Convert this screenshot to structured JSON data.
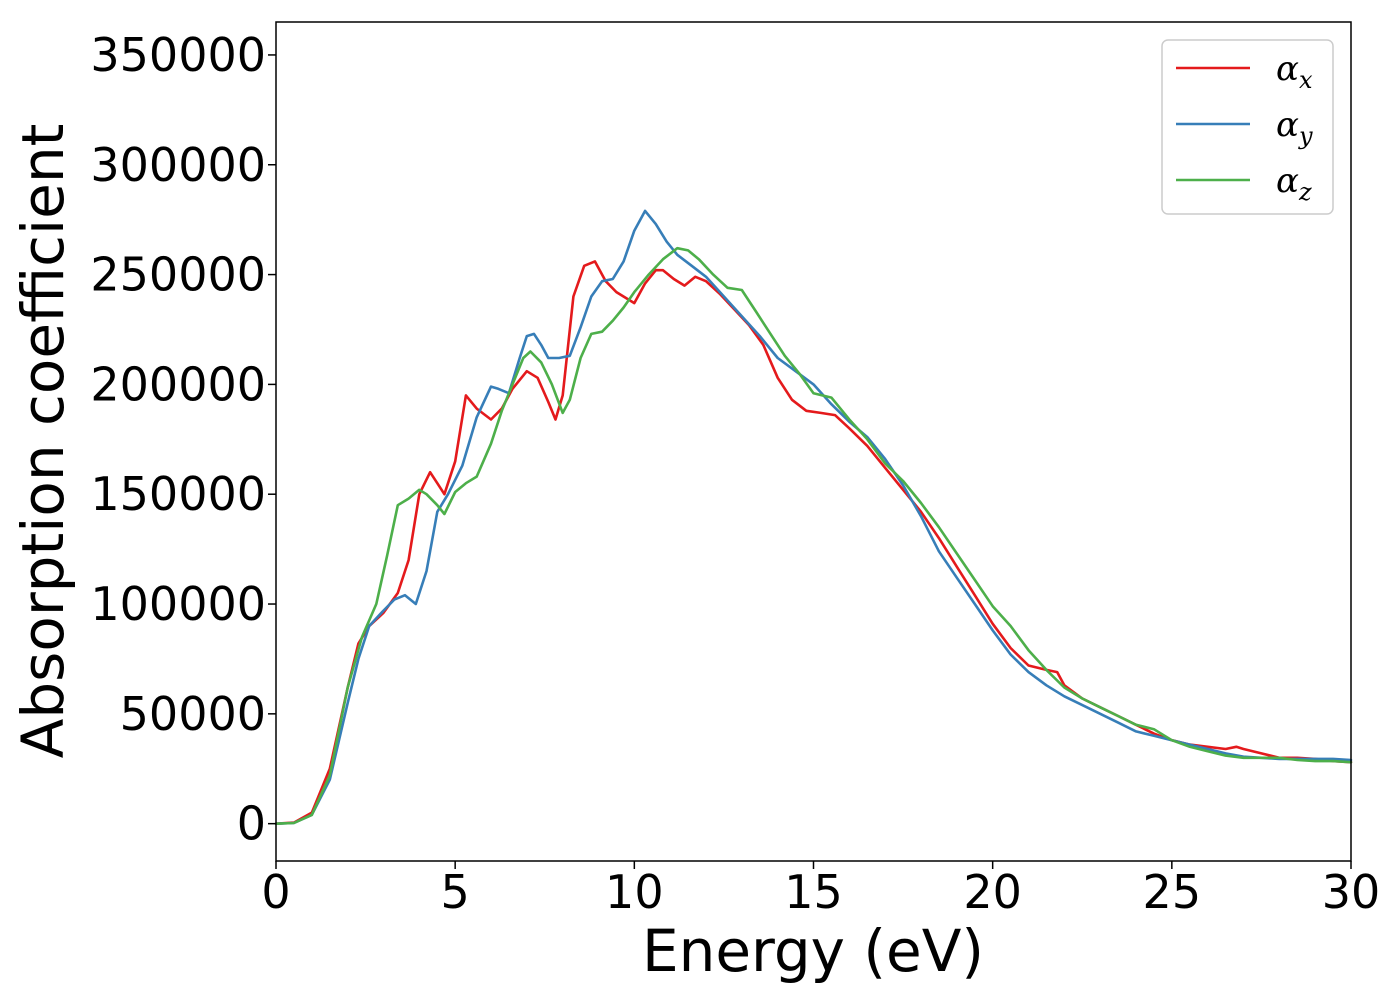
{
  "chart_data": {
    "type": "line",
    "title": "",
    "xlabel": "Energy (eV)",
    "ylabel": "Absorption coefficient",
    "xlim": [
      0,
      30
    ],
    "ylim": [
      -17000,
      365000
    ],
    "xticks": [
      0,
      5,
      10,
      15,
      20,
      25,
      30
    ],
    "xtick_labels": [
      "0",
      "5",
      "10",
      "15",
      "20",
      "25",
      "30"
    ],
    "yticks": [
      0,
      50000,
      100000,
      150000,
      200000,
      250000,
      300000,
      350000
    ],
    "ytick_labels": [
      "0",
      "50000",
      "100000",
      "150000",
      "200000",
      "250000",
      "300000",
      "350000"
    ],
    "grid": false,
    "legend_position": "top-right",
    "series": [
      {
        "name": "α",
        "subscript": "x",
        "color": "#e41a1c",
        "x": [
          0,
          0.5,
          1.0,
          1.5,
          2.0,
          2.3,
          2.6,
          3.0,
          3.4,
          3.7,
          4.0,
          4.3,
          4.5,
          4.7,
          5.0,
          5.3,
          5.6,
          6.0,
          6.3,
          6.6,
          7.0,
          7.3,
          7.6,
          7.8,
          8.0,
          8.3,
          8.6,
          8.9,
          9.2,
          9.5,
          10.0,
          10.3,
          10.6,
          10.8,
          11.1,
          11.4,
          11.7,
          12.0,
          12.4,
          12.8,
          13.2,
          13.6,
          14.0,
          14.4,
          14.8,
          15.2,
          15.6,
          16.0,
          16.5,
          17.0,
          17.5,
          18.0,
          18.5,
          19.0,
          19.5,
          20.0,
          20.5,
          21.0,
          21.5,
          21.8,
          22.0,
          22.5,
          23.0,
          23.5,
          24.0,
          24.5,
          25.0,
          25.5,
          26.0,
          26.5,
          26.8,
          27.0,
          27.5,
          28.0,
          28.5,
          29.0,
          29.5,
          30.0
        ],
        "values": [
          0,
          500,
          5000,
          25000,
          62000,
          82000,
          90000,
          96000,
          105000,
          120000,
          150000,
          160000,
          155000,
          150000,
          165000,
          195000,
          189000,
          184000,
          189000,
          198000,
          206000,
          203000,
          192000,
          184000,
          195000,
          240000,
          254000,
          256000,
          247000,
          242000,
          237000,
          246000,
          252000,
          252000,
          248000,
          245000,
          249000,
          247000,
          241000,
          234000,
          227000,
          218000,
          203000,
          193000,
          188000,
          187000,
          186000,
          180000,
          172000,
          162000,
          152000,
          142000,
          130000,
          117000,
          104000,
          91000,
          80000,
          72000,
          70000,
          69000,
          63000,
          57000,
          53000,
          49000,
          45000,
          41000,
          38000,
          36000,
          35000,
          34000,
          35000,
          34000,
          32000,
          30000,
          30000,
          29500,
          28500,
          28000
        ]
      },
      {
        "name": "α",
        "subscript": "y",
        "color": "#377eb8",
        "x": [
          0,
          0.5,
          1.0,
          1.5,
          2.0,
          2.3,
          2.6,
          3.0,
          3.3,
          3.6,
          3.9,
          4.2,
          4.5,
          4.8,
          5.2,
          5.6,
          6.0,
          6.2,
          6.5,
          6.8,
          7.0,
          7.2,
          7.4,
          7.6,
          7.9,
          8.2,
          8.5,
          8.8,
          9.1,
          9.4,
          9.7,
          10.0,
          10.3,
          10.6,
          10.9,
          11.2,
          11.6,
          12.0,
          12.5,
          13.0,
          13.5,
          14.0,
          14.5,
          15.0,
          15.5,
          16.0,
          16.5,
          17.0,
          17.5,
          18.0,
          18.5,
          19.0,
          19.5,
          20.0,
          20.5,
          21.0,
          21.5,
          22.0,
          22.5,
          23.0,
          23.5,
          24.0,
          24.5,
          25.0,
          25.5,
          26.0,
          26.5,
          27.0,
          27.5,
          28.0,
          28.5,
          29.0,
          29.5,
          30.0
        ],
        "values": [
          0,
          300,
          4000,
          20000,
          55000,
          75000,
          90000,
          97000,
          102000,
          104000,
          100000,
          115000,
          142000,
          150000,
          163000,
          185000,
          199000,
          198000,
          196000,
          212000,
          222000,
          223000,
          218000,
          212000,
          212000,
          213000,
          226000,
          240000,
          247000,
          248000,
          256000,
          270000,
          279000,
          273000,
          265000,
          259000,
          254000,
          249000,
          240000,
          231000,
          222000,
          212000,
          206000,
          200000,
          191000,
          183000,
          176000,
          166000,
          154000,
          140000,
          124000,
          112000,
          100000,
          88000,
          77000,
          69000,
          63000,
          58000,
          54000,
          50000,
          46000,
          42000,
          40000,
          38000,
          36000,
          34000,
          32000,
          30500,
          30000,
          29500,
          29500,
          29500,
          29500,
          29000
        ]
      },
      {
        "name": "α",
        "subscript": "z",
        "color": "#4daf4a",
        "x": [
          0,
          0.5,
          1.0,
          1.5,
          2.0,
          2.4,
          2.8,
          3.1,
          3.4,
          3.7,
          4.0,
          4.2,
          4.5,
          4.7,
          5.0,
          5.3,
          5.6,
          6.0,
          6.3,
          6.6,
          6.9,
          7.1,
          7.4,
          7.7,
          8.0,
          8.2,
          8.5,
          8.8,
          9.1,
          9.4,
          9.7,
          10.0,
          10.4,
          10.8,
          11.2,
          11.5,
          11.8,
          12.2,
          12.6,
          13.0,
          13.4,
          13.8,
          14.2,
          14.6,
          15.0,
          15.5,
          16.0,
          16.5,
          17.0,
          17.5,
          18.0,
          18.5,
          19.0,
          19.5,
          20.0,
          20.5,
          21.0,
          21.5,
          22.0,
          22.5,
          23.0,
          23.5,
          24.0,
          24.5,
          25.0,
          25.5,
          26.0,
          26.5,
          27.0,
          27.5,
          28.0,
          28.5,
          29.0,
          29.5,
          30.0
        ],
        "values": [
          0,
          300,
          4000,
          22000,
          62000,
          85000,
          100000,
          122000,
          145000,
          148000,
          152000,
          150000,
          145000,
          141000,
          151000,
          155000,
          158000,
          173000,
          188000,
          200000,
          212000,
          215000,
          210000,
          200000,
          187000,
          193000,
          212000,
          223000,
          224000,
          229000,
          235000,
          242000,
          250000,
          257000,
          262000,
          261000,
          257000,
          250000,
          244000,
          243000,
          233000,
          223000,
          213000,
          205000,
          196000,
          194000,
          184000,
          175000,
          164000,
          156000,
          146000,
          135000,
          123000,
          111000,
          99000,
          90000,
          79000,
          70000,
          62000,
          57000,
          53000,
          49000,
          45000,
          43000,
          38000,
          35000,
          33000,
          31000,
          30000,
          30000,
          30000,
          29000,
          28500,
          28500,
          28000
        ]
      }
    ]
  }
}
